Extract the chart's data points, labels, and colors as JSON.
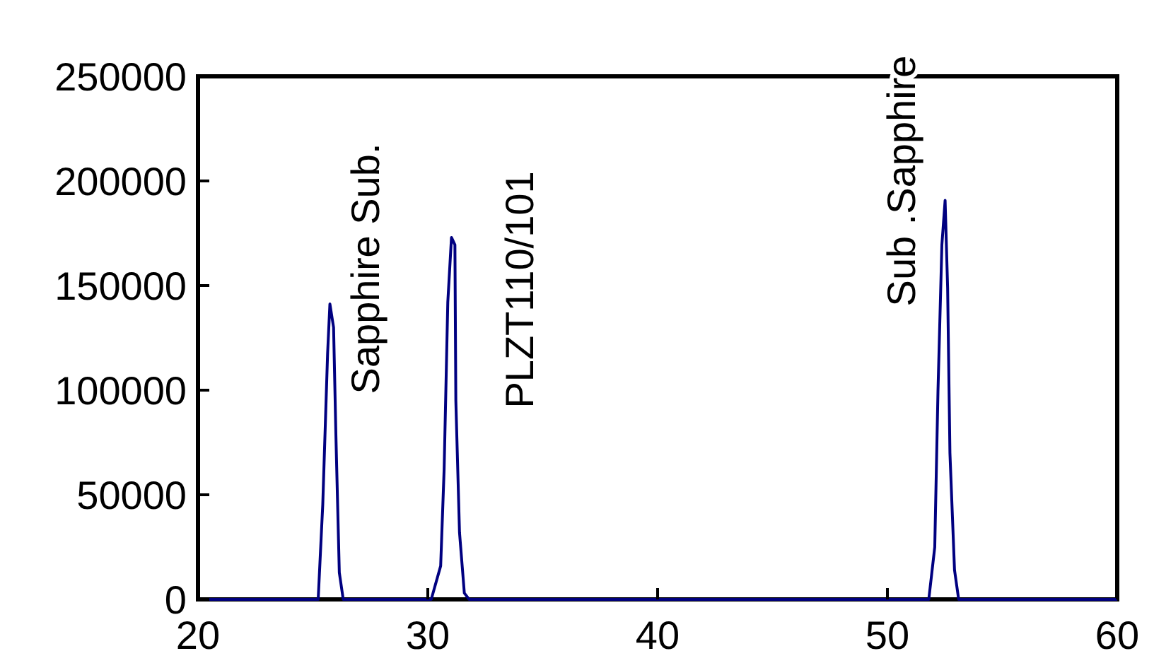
{
  "chart_data": {
    "type": "line",
    "x": [
      20,
      25.23,
      25.43,
      25.64,
      25.74,
      25.9,
      26.0,
      26.15,
      26.32,
      30.15,
      30.56,
      30.71,
      30.87,
      31.03,
      31.18,
      31.22,
      31.38,
      31.59,
      31.8,
      51.8,
      52.06,
      52.2,
      52.37,
      52.51,
      52.62,
      52.72,
      52.92,
      53.1,
      60
    ],
    "series": [
      {
        "color": "#000080",
        "values": [
          0,
          0,
          45500,
          117600,
          141200,
          130000,
          79000,
          12800,
          0,
          0,
          16000,
          62000,
          142000,
          173000,
          169500,
          95000,
          32000,
          3000,
          0,
          0,
          25000,
          99500,
          169500,
          190700,
          149000,
          70000,
          14000,
          0,
          0
        ]
      }
    ],
    "xlim": [
      20,
      60
    ],
    "xticks": [
      20,
      30,
      40,
      50,
      60
    ],
    "ylim": [
      0,
      250000
    ],
    "yticks": [
      0,
      50000,
      100000,
      150000,
      200000,
      250000
    ],
    "grid": false,
    "marker": "none",
    "line_style": "solid",
    "annotations": [
      "Sapphire Sub.",
      "PLZT110/101",
      "Sub .Sapphire"
    ]
  }
}
